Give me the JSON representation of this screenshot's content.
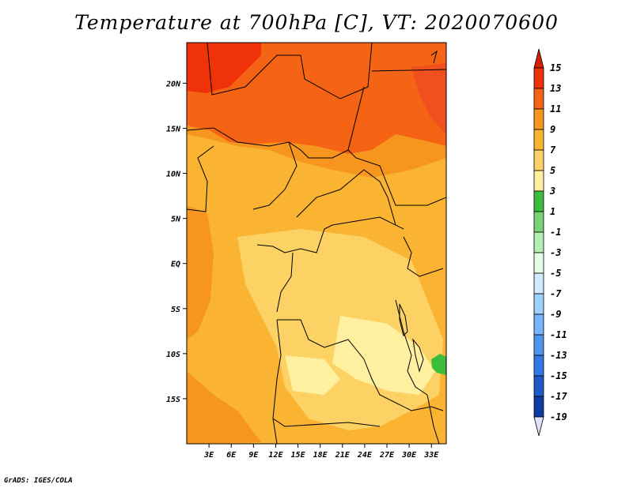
{
  "title": "Temperature at 700hPa [C], VT: 2020070600",
  "credit": "GrADS: IGES/COLA",
  "map": {
    "lon_range": [
      0,
      35
    ],
    "lat_range": [
      -20,
      24.5
    ],
    "x_ticks": [
      "3E",
      "6E",
      "9E",
      "12E",
      "15E",
      "18E",
      "21E",
      "24E",
      "27E",
      "30E",
      "33E"
    ],
    "x_tick_values": [
      3,
      6,
      9,
      12,
      15,
      18,
      21,
      24,
      27,
      30,
      33
    ],
    "y_ticks": [
      "20N",
      "15N",
      "10N",
      "5N",
      "EQ",
      "5S",
      "10S",
      "15S"
    ],
    "y_tick_values": [
      20,
      15,
      10,
      5,
      0,
      -5,
      -10,
      -15
    ]
  },
  "colorbar": {
    "labels": [
      "15",
      "13",
      "11",
      "9",
      "7",
      "5",
      "3",
      "1",
      "-1",
      "-3",
      "-5",
      "-7",
      "-9",
      "-11",
      "-13",
      "-15",
      "-17",
      "-19"
    ],
    "top_arrow_color": "#d81e05",
    "bottom_arrow_color": "#e0e0ff",
    "colors": [
      "#f0320a",
      "#f56414",
      "#f7961e",
      "#fab432",
      "#fcd264",
      "#fff0a0",
      "#3cbe3c",
      "#78d278",
      "#b4f0b4",
      "#e6ffe6",
      "#d2eaff",
      "#a0d2ff",
      "#78b4ff",
      "#5096f0",
      "#3278e6",
      "#1e5ac8",
      "#0f3ca0",
      "#0a1470"
    ]
  }
}
